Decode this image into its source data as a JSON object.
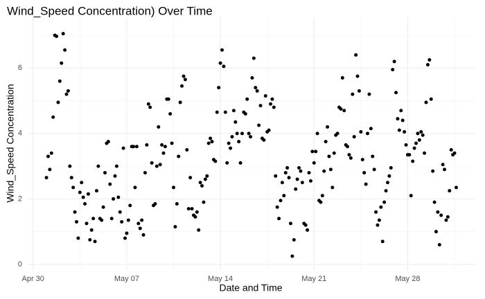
{
  "chart_data": {
    "type": "scatter",
    "title": "Wind_Speed Concentration) Over Time",
    "x_label": "Date and Time",
    "y_label": "Wind_Speed Concentration",
    "color": "#000000",
    "grid": true,
    "xlim": [
      -0.4,
      33
    ],
    "ylim": [
      -0.17,
      7.55
    ],
    "xticks": [
      {
        "value": 0,
        "label": "Apr 30"
      },
      {
        "value": 7,
        "label": "May 07"
      },
      {
        "value": 14,
        "label": "May 14"
      },
      {
        "value": 21,
        "label": "May 21"
      },
      {
        "value": 28,
        "label": "May 28"
      }
    ],
    "yticks": [
      0,
      2,
      4,
      6
    ],
    "x": [
      1,
      1.125,
      1.25,
      1.375,
      1.5,
      1.625,
      1.75,
      1.875,
      2,
      2.125,
      2.25,
      2.375,
      2.5,
      2.625,
      2.75,
      2.875,
      3,
      3.125,
      3.25,
      3.375,
      3.5,
      3.625,
      3.75,
      3.875,
      4,
      4.125,
      4.25,
      4.375,
      4.5,
      4.625,
      4.75,
      4.875,
      5,
      5.125,
      5.25,
      5.375,
      5.5,
      5.625,
      5.75,
      5.875,
      6,
      6.125,
      6.25,
      6.375,
      6.5,
      6.625,
      6.75,
      6.875,
      7,
      7.125,
      7.25,
      7.375,
      7.5,
      7.625,
      7.75,
      7.875,
      8,
      8.125,
      8.25,
      8.375,
      8.5,
      8.625,
      8.75,
      8.875,
      9,
      9.125,
      9.25,
      9.375,
      9.5,
      9.625,
      9.75,
      9.875,
      10,
      10.125,
      10.25,
      10.375,
      10.5,
      10.625,
      10.75,
      10.875,
      11,
      11.125,
      11.25,
      11.375,
      11.5,
      11.625,
      11.75,
      11.875,
      12,
      12.125,
      12.25,
      12.375,
      12.5,
      12.625,
      12.75,
      12.875,
      13,
      13.125,
      13.25,
      13.375,
      13.5,
      13.625,
      13.75,
      13.875,
      14,
      14.125,
      14.25,
      14.375,
      14.5,
      14.625,
      14.75,
      14.875,
      15,
      15.125,
      15.25,
      15.375,
      15.5,
      15.625,
      15.75,
      15.875,
      16,
      16.125,
      16.25,
      16.375,
      16.5,
      16.625,
      16.75,
      16.875,
      17,
      17.125,
      17.25,
      17.375,
      17.5,
      17.625,
      17.75,
      17.875,
      18,
      18.125,
      18.25,
      18.375,
      18.5,
      18.625,
      18.75,
      18.875,
      19,
      19.125,
      19.25,
      19.375,
      19.5,
      19.625,
      19.75,
      19.875,
      20,
      20.125,
      20.25,
      20.375,
      20.5,
      20.625,
      20.75,
      20.875,
      21,
      21.125,
      21.25,
      21.375,
      21.5,
      21.625,
      21.75,
      21.875,
      22,
      22.125,
      22.25,
      22.375,
      22.5,
      22.625,
      22.75,
      22.875,
      23,
      23.125,
      23.25,
      23.375,
      23.5,
      23.625,
      23.75,
      23.875,
      24,
      24.125,
      24.25,
      24.375,
      24.5,
      24.625,
      24.75,
      24.875,
      25,
      25.125,
      25.25,
      25.375,
      25.5,
      25.625,
      25.75,
      25.875,
      26,
      26.125,
      26.25,
      26.375,
      26.5,
      26.625,
      26.75,
      26.875,
      27,
      27.125,
      27.25,
      27.375,
      27.5,
      27.625,
      27.75,
      27.875,
      28,
      28.125,
      28.25,
      28.375,
      28.5,
      28.625,
      28.75,
      28.875,
      29,
      29.125,
      29.25,
      29.375,
      29.5,
      29.625,
      29.75,
      29.875,
      30,
      30.125,
      30.25,
      30.375,
      30.5,
      30.625,
      30.75,
      30.875,
      31,
      31.125,
      31.25,
      31.375,
      31.5,
      31.625
    ],
    "values": [
      2.65,
      3.3,
      2.9,
      3.4,
      4.5,
      7.0,
      6.97,
      4.95,
      5.6,
      6.15,
      7.05,
      6.55,
      5.2,
      5.3,
      3.0,
      2.65,
      2.35,
      1.6,
      1.3,
      0.8,
      2.2,
      2.5,
      2.05,
      1.85,
      1.25,
      2.15,
      0.75,
      1.05,
      1.4,
      0.7,
      2.25,
      3.0,
      1.4,
      1.35,
      1.75,
      2.8,
      3.7,
      3.75,
      2.45,
      1.4,
      2.0,
      2.7,
      3.0,
      2.05,
      1.6,
      1.3,
      3.55,
      0.8,
      0.95,
      1.35,
      1.8,
      3.6,
      3.6,
      2.35,
      3.6,
      1.25,
      1.1,
      1.35,
      0.9,
      2.8,
      3.65,
      4.9,
      4.8,
      3.1,
      1.8,
      1.85,
      3.0,
      4.2,
      3.05,
      3.65,
      3.4,
      3.6,
      5.05,
      5.05,
      4.6,
      3.7,
      2.35,
      1.15,
      1.85,
      3.3,
      4.95,
      5.45,
      5.75,
      5.65,
      3.5,
      1.7,
      2.65,
      1.7,
      1.5,
      1.45,
      1.6,
      1.05,
      2.5,
      2.4,
      1.9,
      2.6,
      2.7,
      3.7,
      3.85,
      3.75,
      3.2,
      3.15,
      4.65,
      5.4,
      6.15,
      6.55,
      6.05,
      4.65,
      3.1,
      3.7,
      3.55,
      3.9,
      4.7,
      4.35,
      4.0,
      3.75,
      3.1,
      4.0,
      4.65,
      4.6,
      5.05,
      4.0,
      3.9,
      5.7,
      6.3,
      5.4,
      5.3,
      4.25,
      4.85,
      3.85,
      3.8,
      5.15,
      4.05,
      4.1,
      4.9,
      5.05,
      4.8,
      2.7,
      1.75,
      1.4,
      1.95,
      2.5,
      2.1,
      2.8,
      2.95,
      2.65,
      1.25,
      0.25,
      0.75,
      2.3,
      2.6,
      2.95,
      2.85,
      2.5,
      1.25,
      1.2,
      1.05,
      2.8,
      2.55,
      3.45,
      3.1,
      3.45,
      4.0,
      1.95,
      1.9,
      2.1,
      2.85,
      3.75,
      4.2,
      3.3,
      2.9,
      2.35,
      3.4,
      3.95,
      4.0,
      4.8,
      4.75,
      5.7,
      4.7,
      3.65,
      3.6,
      3.35,
      3.25,
      5.2,
      3.9,
      6.4,
      5.75,
      5.3,
      4.05,
      3.2,
      2.8,
      2.45,
      4.0,
      5.2,
      4.15,
      3.3,
      2.9,
      1.6,
      1.2,
      1.35,
      1.75,
      0.7,
      1.9,
      2.25,
      2.5,
      2.7,
      2.95,
      5.95,
      6.2,
      5.25,
      4.45,
      4.1,
      4.7,
      4.4,
      4.05,
      3.65,
      3.35,
      3.35,
      2.1,
      3.15,
      3.55,
      3.7,
      4.0,
      3.8,
      4.05,
      3.95,
      3.4,
      4.95,
      6.1,
      6.25,
      5.05,
      2.85,
      1.9,
      1.0,
      1.6,
      0.6,
      1.5,
      3.05,
      2.9,
      1.35,
      1.45,
      2.25,
      3.5,
      3.35,
      3.4,
      2.35
    ]
  }
}
